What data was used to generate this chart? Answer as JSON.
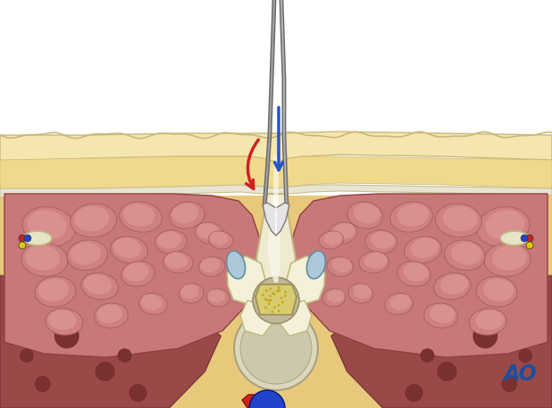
{
  "fig_width": 6.2,
  "fig_height": 4.59,
  "dpi": 100,
  "bg_color": "#ffffff",
  "ao_text": "AO",
  "ao_color": "#1a4fa0",
  "ao_fontsize": 14,
  "skin_color": "#f5e6b0",
  "skin_outline": "#c8b87a",
  "fat_color": "#f0d98a",
  "muscle_color": "#c87878",
  "muscle_dark": "#a05050",
  "muscle_light": "#e09090",
  "bone_color": "#f5f0d8",
  "bone_outline": "#c8c090",
  "fascia_color": "#e8e0c0",
  "nerve_color": "#e8d870",
  "disc_color": "#d4c890",
  "ligament_color": "#e0e8d0",
  "vessel_red": "#cc2222",
  "vessel_blue": "#2244cc",
  "retractor_color": "#888888",
  "arrow_blue": "#2255cc",
  "arrow_red": "#cc2222",
  "spinous_color": "#f0ead0",
  "sc_color": "#d8d0b0",
  "facet_color": "#adc8d8",
  "background_lower": "#e8c87a"
}
